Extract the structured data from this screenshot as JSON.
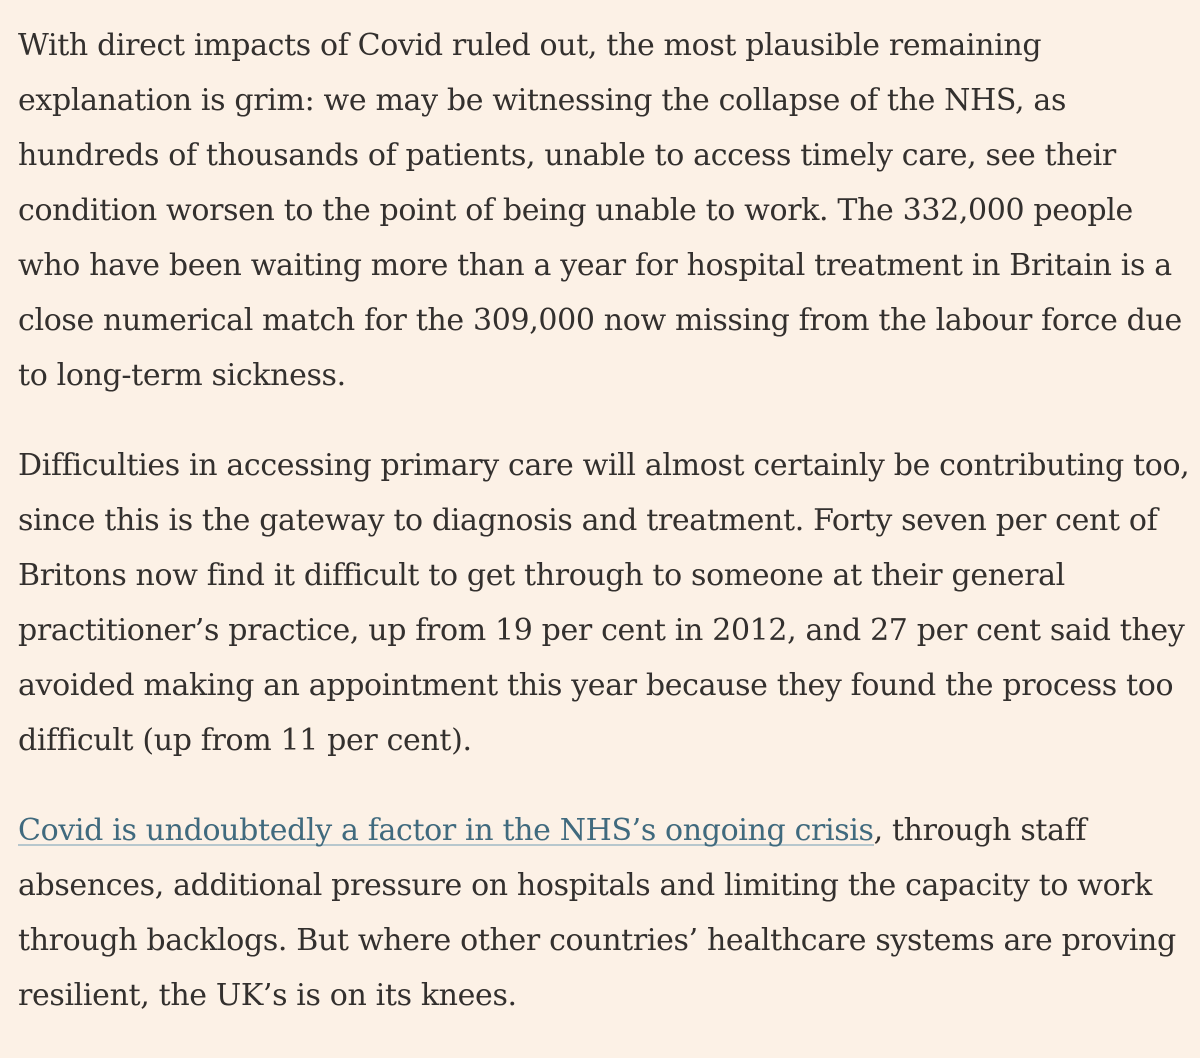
{
  "article": {
    "paragraph_1": "With direct impacts of Covid ruled out, the most plausible remaining explanation is grim: we may be witnessing the collapse of the NHS, as hundreds of thousands of patients, unable to access timely care, see their condition worsen to the point of being unable to work. The 332,000 people who have been waiting more than a year for hospital treatment in Britain is a close numerical match for the 309,000 now missing from the labour force due to long-term sickness.",
    "paragraph_2": "Difficulties in accessing primary care will almost certainly be contributing too, since this is the gateway to diagnosis and treatment. Forty seven per cent of Britons now find it difficult to get through to someone at their general practitioner’s practice, up from 19 per cent in 2012, and 27 per cent said they avoided making an appointment this year because they found the process too difficult (up from 11 per cent).",
    "paragraph_3": {
      "link_text": "Covid is undoubtedly a factor in the NHS’s ongoing crisis",
      "rest_text": ", through staff absences, additional pressure on hospitals and limiting the capacity to work through backlogs. But where other countries’ healthcare systems are proving resilient, the UK’s is on its knees."
    }
  },
  "colors": {
    "background": "#fcf1e6",
    "text": "#33302e",
    "link": "#406a7e",
    "link_underline": "#b7c7cd"
  }
}
